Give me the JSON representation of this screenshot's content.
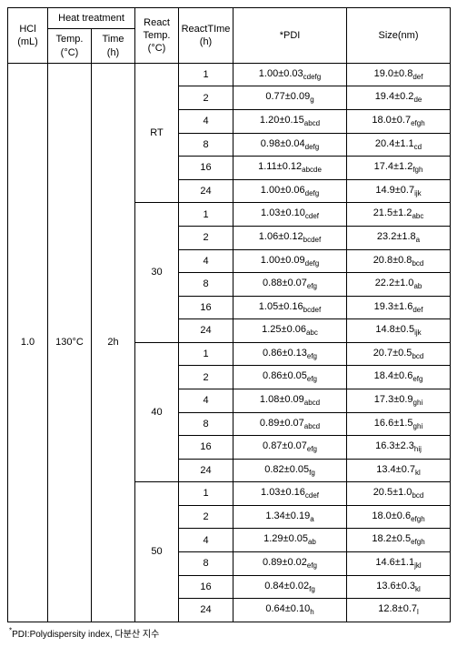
{
  "headers": {
    "hcl": "HCl\n(mL)",
    "heat": "Heat treatment",
    "temp": "Temp.\n(°C)",
    "time": "Time\n(h)",
    "reacttemp": "React\nTemp.\n(°C)",
    "reacttime": "ReactTIme\n(h)",
    "pdi": "*PDI",
    "size": "Size(nm)"
  },
  "fixed": {
    "hcl": "1.0",
    "temp": "130°C",
    "time": "2h"
  },
  "groups": [
    {
      "react_temp": "RT",
      "rows": [
        {
          "t": "1",
          "p": "1.00±0.03",
          "ps": "cdefg",
          "s": "19.0±0.8",
          "ss": "def"
        },
        {
          "t": "2",
          "p": "0.77±0.09",
          "ps": "g",
          "s": "19.4±0.2",
          "ss": "de"
        },
        {
          "t": "4",
          "p": "1.20±0.15",
          "ps": "abcd",
          "s": "18.0±0.7",
          "ss": "efgh"
        },
        {
          "t": "8",
          "p": "0.98±0.04",
          "ps": "defg",
          "s": "20.4±1.1",
          "ss": "cd"
        },
        {
          "t": "16",
          "p": "1.11±0.12",
          "ps": "abcde",
          "s": "17.4±1.2",
          "ss": "fgh"
        },
        {
          "t": "24",
          "p": "1.00±0.06",
          "ps": "defg",
          "s": "14.9±0.7",
          "ss": "ijk"
        }
      ]
    },
    {
      "react_temp": "30",
      "rows": [
        {
          "t": "1",
          "p": "1.03±0.10",
          "ps": "cdef",
          "s": "21.5±1.2",
          "ss": "abc"
        },
        {
          "t": "2",
          "p": "1.06±0.12",
          "ps": "bcdef",
          "s": "23.2±1.8",
          "ss": "a"
        },
        {
          "t": "4",
          "p": "1.00±0.09",
          "ps": "defg",
          "s": "20.8±0.8",
          "ss": "bcd"
        },
        {
          "t": "8",
          "p": "0.88±0.07",
          "ps": "efg",
          "s": "22.2±1.0",
          "ss": "ab"
        },
        {
          "t": "16",
          "p": "1.05±0.16",
          "ps": "bcdef",
          "s": "19.3±1.6",
          "ss": "def"
        },
        {
          "t": "24",
          "p": "1.25±0.06",
          "ps": "abc",
          "s": "14.8±0.5",
          "ss": "ijk"
        }
      ]
    },
    {
      "react_temp": "40",
      "rows": [
        {
          "t": "1",
          "p": "0.86±0.13",
          "ps": "efg",
          "s": "20.7±0.5",
          "ss": "bcd"
        },
        {
          "t": "2",
          "p": "0.86±0.05",
          "ps": "efg",
          "s": "18.4±0.6",
          "ss": "efg"
        },
        {
          "t": "4",
          "p": "1.08±0.09",
          "ps": "abcd",
          "s": "17.3±0.9",
          "ss": "ghi"
        },
        {
          "t": "8",
          "p": "0.89±0.07",
          "ps": "abcd",
          "s": "16.6±1.5",
          "ss": "ghi"
        },
        {
          "t": "16",
          "p": "0.87±0.07",
          "ps": "efg",
          "s": "16.3±2.3",
          "ss": "hij"
        },
        {
          "t": "24",
          "p": "0.82±0.05",
          "ps": "fg",
          "s": "13.4±0.7",
          "ss": "kl"
        }
      ]
    },
    {
      "react_temp": "50",
      "rows": [
        {
          "t": "1",
          "p": "1.03±0.16",
          "ps": "cdef",
          "s": "20.5±1.0",
          "ss": "bcd"
        },
        {
          "t": "2",
          "p": "1.34±0.19",
          "ps": "a",
          "s": "18.0±0.6",
          "ss": "efgh"
        },
        {
          "t": "4",
          "p": "1.29±0.05",
          "ps": "ab",
          "s": "18.2±0.5",
          "ss": "efgh"
        },
        {
          "t": "8",
          "p": "0.89±0.02",
          "ps": "efg",
          "s": "14.6±1.1",
          "ss": "jkl"
        },
        {
          "t": "16",
          "p": "0.84±0.02",
          "ps": "fg",
          "s": "13.6±0.3",
          "ss": "kl"
        },
        {
          "t": "24",
          "p": "0.64±0.10",
          "ps": "h",
          "s": "12.8±0.7",
          "ss": "l"
        }
      ]
    }
  ],
  "footnote": {
    "star": "*",
    "text": "PDI:Polydispersity index, 다분산 지수"
  }
}
